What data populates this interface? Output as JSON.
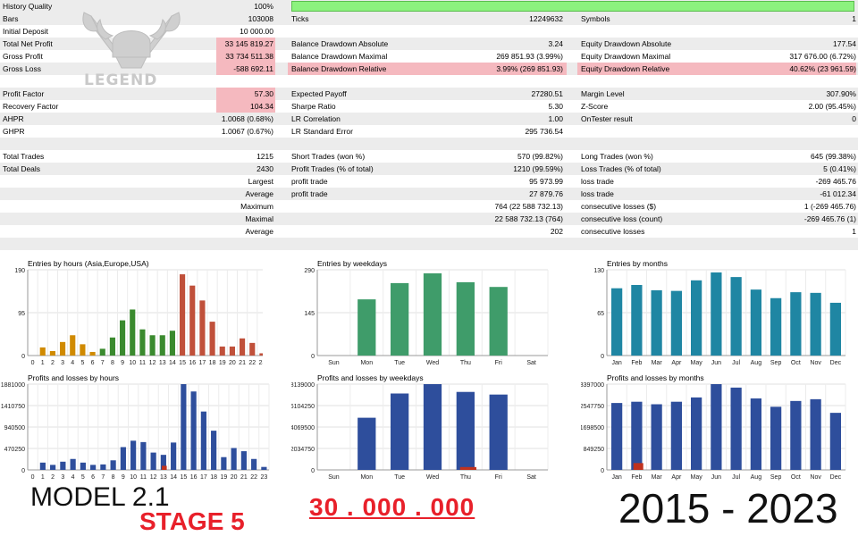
{
  "report": {
    "history_quality": {
      "label": "History Quality",
      "value": "100%",
      "fill": 1.0
    },
    "rows": [
      {
        "shaded": true,
        "cells": [
          {
            "t": "Bars",
            "c": "a1"
          },
          {
            "t": "103008",
            "c": "a2"
          },
          {
            "t": "Ticks",
            "c": "b1"
          },
          {
            "t": "12249632",
            "c": "b2"
          },
          {
            "t": "Symbols",
            "c": "c1"
          },
          {
            "t": "1",
            "c": "c2"
          }
        ]
      },
      {
        "shaded": false,
        "cells": [
          {
            "t": "Initial Deposit",
            "c": "a1"
          },
          {
            "t": "10 000.00",
            "c": "a2"
          }
        ]
      },
      {
        "shaded": true,
        "cells": [
          {
            "t": "Total Net Profit",
            "c": "a1"
          },
          {
            "t": "33 145 819.27",
            "c": "a2",
            "hl": true
          },
          {
            "t": "Balance Drawdown Absolute",
            "c": "b1"
          },
          {
            "t": "3.24",
            "c": "b2"
          },
          {
            "t": "Equity Drawdown Absolute",
            "c": "c1"
          },
          {
            "t": "177.54",
            "c": "c2"
          }
        ]
      },
      {
        "shaded": false,
        "cells": [
          {
            "t": "Gross Profit",
            "c": "a1"
          },
          {
            "t": "33 734 511.38",
            "c": "a2",
            "hl": true
          },
          {
            "t": "Balance Drawdown Maximal",
            "c": "b1"
          },
          {
            "t": "269 851.93 (3.99%)",
            "c": "b2"
          },
          {
            "t": "Equity Drawdown Maximal",
            "c": "c1"
          },
          {
            "t": "317 676.00 (6.72%)",
            "c": "c2"
          }
        ]
      },
      {
        "shaded": true,
        "cells": [
          {
            "t": "Gross Loss",
            "c": "a1"
          },
          {
            "t": "-588 692.11",
            "c": "a2",
            "hl": true
          },
          {
            "t": "Balance Drawdown Relative",
            "c": "b1",
            "hl": true
          },
          {
            "t": "3.99% (269 851.93)",
            "c": "b2",
            "hl": true
          },
          {
            "t": "Equity Drawdown Relative",
            "c": "c1",
            "hl": true
          },
          {
            "t": "40.62% (23 961.59)",
            "c": "c2",
            "hl": true
          }
        ]
      },
      {
        "shaded": false,
        "cells": []
      },
      {
        "shaded": true,
        "cells": [
          {
            "t": "Profit Factor",
            "c": "a1"
          },
          {
            "t": "57.30",
            "c": "a2",
            "hl": true
          },
          {
            "t": "Expected Payoff",
            "c": "b1"
          },
          {
            "t": "27280.51",
            "c": "b2"
          },
          {
            "t": "Margin Level",
            "c": "c1"
          },
          {
            "t": "307.90%",
            "c": "c2"
          }
        ]
      },
      {
        "shaded": false,
        "cells": [
          {
            "t": "Recovery Factor",
            "c": "a1"
          },
          {
            "t": "104.34",
            "c": "a2",
            "hl": true
          },
          {
            "t": "Sharpe Ratio",
            "c": "b1"
          },
          {
            "t": "5.30",
            "c": "b2"
          },
          {
            "t": "Z-Score",
            "c": "c1"
          },
          {
            "t": "2.00 (95.45%)",
            "c": "c2"
          }
        ]
      },
      {
        "shaded": true,
        "cells": [
          {
            "t": "AHPR",
            "c": "a1"
          },
          {
            "t": "1.0068 (0.68%)",
            "c": "a2"
          },
          {
            "t": "LR Correlation",
            "c": "b1"
          },
          {
            "t": "1.00",
            "c": "b2"
          },
          {
            "t": "OnTester result",
            "c": "c1"
          },
          {
            "t": "0",
            "c": "c2"
          }
        ]
      },
      {
        "shaded": false,
        "cells": [
          {
            "t": "GHPR",
            "c": "a1"
          },
          {
            "t": "1.0067 (0.67%)",
            "c": "a2"
          },
          {
            "t": "LR Standard Error",
            "c": "b1"
          },
          {
            "t": "295 736.54",
            "c": "b2"
          }
        ]
      },
      {
        "shaded": true,
        "cells": []
      },
      {
        "shaded": false,
        "cells": [
          {
            "t": "Total Trades",
            "c": "a1"
          },
          {
            "t": "1215",
            "c": "a2"
          },
          {
            "t": "Short Trades (won %)",
            "c": "b1"
          },
          {
            "t": "570 (99.82%)",
            "c": "b2"
          },
          {
            "t": "Long Trades (won %)",
            "c": "c1"
          },
          {
            "t": "645 (99.38%)",
            "c": "c2"
          }
        ]
      },
      {
        "shaded": true,
        "cells": [
          {
            "t": "Total Deals",
            "c": "a1"
          },
          {
            "t": "2430",
            "c": "a2"
          },
          {
            "t": "Profit Trades (% of total)",
            "c": "b1"
          },
          {
            "t": "1210 (99.59%)",
            "c": "b2"
          },
          {
            "t": "Loss Trades (% of total)",
            "c": "c1"
          },
          {
            "t": "5 (0.41%)",
            "c": "c2"
          }
        ]
      },
      {
        "shaded": false,
        "cells": [
          {
            "t": "Largest",
            "c": "a2"
          },
          {
            "t": "profit trade",
            "c": "b1"
          },
          {
            "t": "95 973.99",
            "c": "b2"
          },
          {
            "t": "loss trade",
            "c": "c1"
          },
          {
            "t": "-269 465.76",
            "c": "c2"
          }
        ]
      },
      {
        "shaded": true,
        "cells": [
          {
            "t": "Average",
            "c": "a2"
          },
          {
            "t": "profit trade",
            "c": "b1"
          },
          {
            "t": "27 879.76",
            "c": "b2"
          },
          {
            "t": "loss trade",
            "c": "c1"
          },
          {
            "t": "-61 012.34",
            "c": "c2"
          }
        ]
      },
      {
        "shaded": false,
        "cells": [
          {
            "t": "Maximum",
            "c": "a2"
          },
          {
            "t": "764 (22 588 732.13)",
            "c": "b2"
          },
          {
            "t": "consecutive losses ($)",
            "c": "c1"
          },
          {
            "t": "1 (-269 465.76)",
            "c": "c2"
          }
        ]
      },
      {
        "shaded": true,
        "cells": [
          {
            "t": "Maximal",
            "c": "a2"
          },
          {
            "t": "22 588 732.13 (764)",
            "c": "b2"
          },
          {
            "t": "consecutive loss (count)",
            "c": "c1"
          },
          {
            "t": "-269 465.76 (1)",
            "c": "c2"
          }
        ]
      },
      {
        "shaded": false,
        "cells": [
          {
            "t": "Average",
            "c": "a2"
          },
          {
            "t": "202",
            "c": "b2"
          },
          {
            "t": "consecutive losses",
            "c": "c1"
          },
          {
            "t": "1",
            "c": "c2"
          }
        ]
      },
      {
        "shaded": true,
        "cells": []
      }
    ]
  },
  "logo": {
    "text": "LEGEND",
    "icon": "viking-helmet-axes-icon"
  },
  "chart_data": [
    {
      "type": "bar",
      "title": "Entries by hours (Asia,Europe,USA)",
      "ylim": [
        0,
        190
      ],
      "yticks": [
        "190",
        "95",
        "0"
      ],
      "categories": [
        "0",
        "1",
        "2",
        "3",
        "4",
        "5",
        "6",
        "7",
        "8",
        "9",
        "10",
        "11",
        "12",
        "13",
        "14",
        "15",
        "16",
        "17",
        "18",
        "19",
        "20",
        "21",
        "22",
        "23"
      ],
      "values": [
        0,
        18,
        10,
        30,
        45,
        25,
        8,
        15,
        40,
        78,
        102,
        58,
        45,
        45,
        55,
        180,
        155,
        122,
        75,
        20,
        20,
        38,
        28,
        5
      ],
      "colors": [
        "#d08a00",
        "#d08a00",
        "#d08a00",
        "#d08a00",
        "#d08a00",
        "#d08a00",
        "#d08a00",
        "#3a8a2e",
        "#3a8a2e",
        "#3a8a2e",
        "#3a8a2e",
        "#3a8a2e",
        "#3a8a2e",
        "#3a8a2e",
        "#3a8a2e",
        "#c0503a",
        "#c0503a",
        "#c0503a",
        "#c0503a",
        "#c0503a",
        "#c0503a",
        "#c0503a",
        "#c0503a",
        "#c0503a"
      ],
      "grid": true
    },
    {
      "type": "bar",
      "title": "Entries by weekdays",
      "ylim": [
        0,
        290
      ],
      "yticks": [
        "290",
        "145",
        "0"
      ],
      "categories": [
        "Sun",
        "Mon",
        "Tue",
        "Wed",
        "Thu",
        "Fri",
        "Sat"
      ],
      "values": [
        0,
        190,
        245,
        278,
        248,
        232,
        0
      ],
      "color": "#3f9c6a",
      "grid": true
    },
    {
      "type": "bar",
      "title": "Entries by months",
      "ylim": [
        0,
        130
      ],
      "yticks": [
        "130",
        "65",
        "0"
      ],
      "categories": [
        "Jan",
        "Feb",
        "Mar",
        "Apr",
        "May",
        "Jun",
        "Jul",
        "Aug",
        "Sep",
        "Oct",
        "Nov",
        "Dec"
      ],
      "values": [
        102,
        107,
        99,
        98,
        114,
        126,
        119,
        100,
        87,
        96,
        95,
        80
      ],
      "color": "#1f86a3",
      "grid": true
    },
    {
      "type": "bar",
      "title": "Profits and losses by hours",
      "ylim": [
        0,
        1881000
      ],
      "yticks": [
        "1881000",
        "1410750",
        "940500",
        "470250",
        "0"
      ],
      "categories": [
        "0",
        "1",
        "2",
        "3",
        "4",
        "5",
        "6",
        "7",
        "8",
        "9",
        "10",
        "11",
        "12",
        "13",
        "14",
        "15",
        "16",
        "17",
        "18",
        "19",
        "20",
        "21",
        "22",
        "23"
      ],
      "series": [
        {
          "values": [
            0,
            160000,
            110000,
            180000,
            240000,
            160000,
            110000,
            120000,
            210000,
            500000,
            640000,
            610000,
            380000,
            330000,
            600000,
            1881000,
            1720000,
            1280000,
            860000,
            280000,
            480000,
            410000,
            240000,
            65000
          ],
          "color": "#2e4e9c"
        },
        {
          "values": [
            0,
            0,
            0,
            0,
            0,
            0,
            0,
            0,
            0,
            0,
            0,
            0,
            0,
            90000,
            0,
            0,
            0,
            0,
            0,
            0,
            0,
            0,
            0,
            0
          ],
          "color": "#c0321e"
        }
      ],
      "grid": true
    },
    {
      "type": "bar",
      "title": "Profits and losses by weekdays",
      "ylim": [
        0,
        8139000
      ],
      "yticks": [
        "8139000",
        "6104250",
        "4069500",
        "2034750",
        "0"
      ],
      "categories": [
        "Sun",
        "Mon",
        "Tue",
        "Wed",
        "Thu",
        "Fri",
        "Sat"
      ],
      "series": [
        {
          "values": [
            0,
            4950000,
            7250000,
            8139000,
            7400000,
            7150000,
            0
          ],
          "color": "#2e4e9c"
        },
        {
          "values": [
            0,
            0,
            0,
            0,
            270000,
            0,
            0
          ],
          "color": "#c0321e"
        }
      ],
      "grid": true
    },
    {
      "type": "bar",
      "title": "Profits and losses by months",
      "ylim": [
        0,
        3397000
      ],
      "yticks": [
        "3397000",
        "2547750",
        "1698500",
        "849250",
        "0"
      ],
      "categories": [
        "Jan",
        "Feb",
        "Mar",
        "Apr",
        "May",
        "Jun",
        "Jul",
        "Aug",
        "Sep",
        "Oct",
        "Nov",
        "Dec"
      ],
      "series": [
        {
          "values": [
            2650000,
            2700000,
            2600000,
            2700000,
            2870000,
            3397000,
            3260000,
            2830000,
            2500000,
            2730000,
            2800000,
            2260000
          ],
          "color": "#2e4e9c"
        },
        {
          "values": [
            0,
            270000,
            0,
            0,
            0,
            0,
            0,
            0,
            0,
            0,
            0,
            0
          ],
          "color": "#c0321e"
        }
      ],
      "grid": true
    }
  ],
  "captions": {
    "model": "MODEL 2.1",
    "stage": "STAGE 5",
    "amount": "30 . 000 . 000",
    "years": "2015 - 2023"
  }
}
